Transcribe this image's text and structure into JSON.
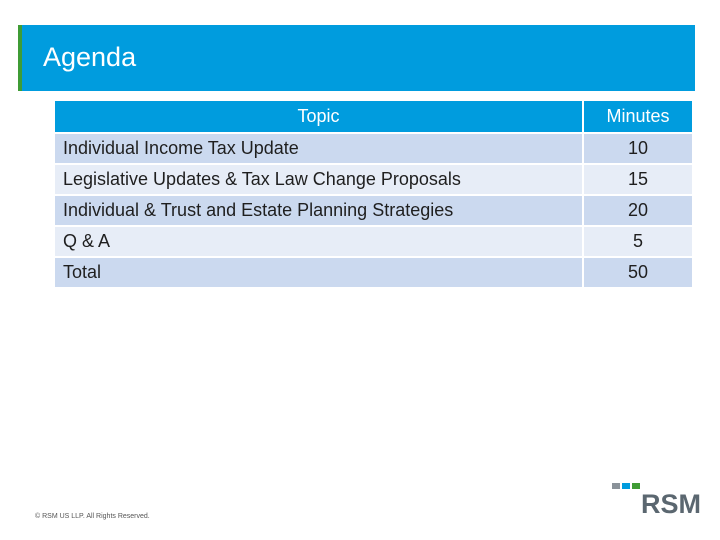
{
  "slide": {
    "title": "Agenda"
  },
  "table": {
    "headers": {
      "topic": "Topic",
      "minutes": "Minutes"
    },
    "rows": [
      {
        "topic": "Individual Income Tax Update",
        "minutes": "10"
      },
      {
        "topic": "Legislative Updates & Tax Law Change Proposals",
        "minutes": "15"
      },
      {
        "topic": "Individual & Trust and Estate Planning Strategies",
        "minutes": "20"
      },
      {
        "topic": "Q & A",
        "minutes": "5"
      },
      {
        "topic": "Total",
        "minutes": "50"
      }
    ]
  },
  "footer": {
    "copyright": "© RSM US LLP. All Rights Reserved."
  },
  "logo": {
    "text": "RSM"
  },
  "colors": {
    "brand_blue": "#009cde",
    "brand_green": "#3f9c35",
    "row_dark": "#cbd9ef",
    "row_light": "#e7edf7"
  }
}
